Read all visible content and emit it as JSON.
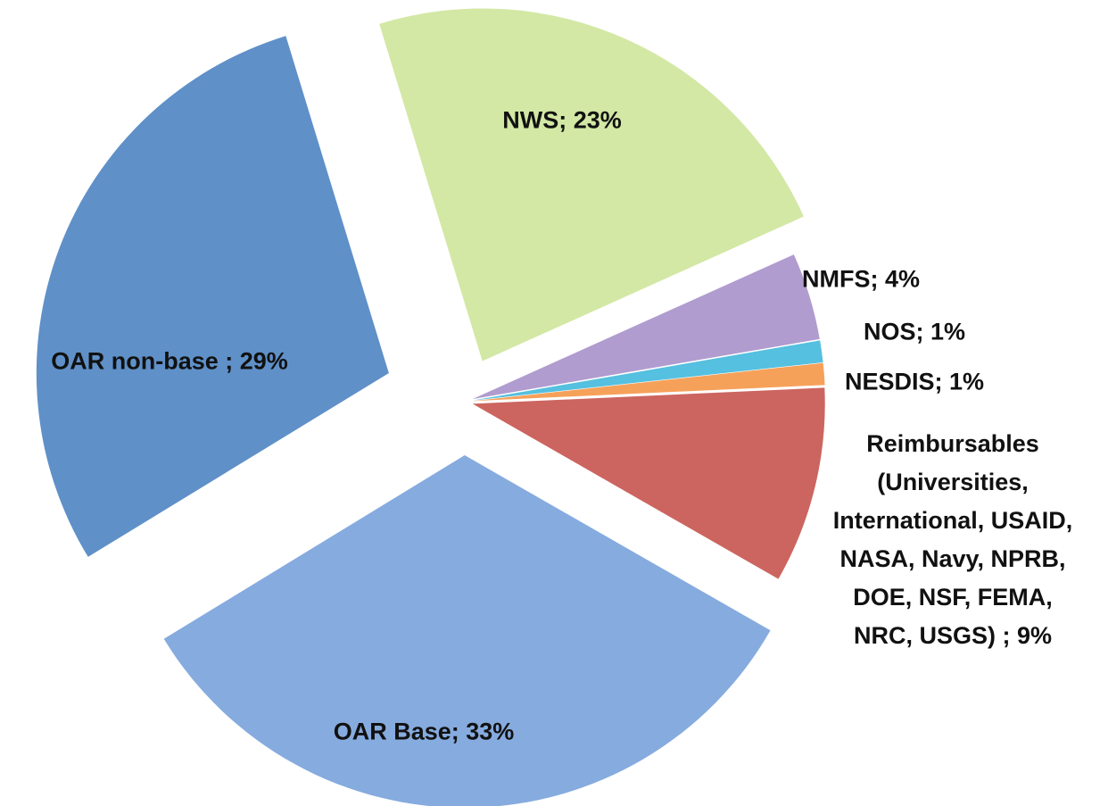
{
  "chart_data": {
    "type": "pie",
    "values": [
      23,
      4,
      1,
      1,
      9,
      33,
      29
    ],
    "value_labels": [
      "NWS; 23%",
      "NMFS; 4%",
      "NOS; 1%",
      "NESDIS; 1%",
      "Reimbursables\n(Universities,\nInternational, USAID,\nNASA, Navy, NPRB,\nDOE, NSF, FEMA,\nNRC, USGS) ; 9%",
      "OAR Base; 33%",
      "OAR non-base ; 29%"
    ],
    "colors": [
      "#d3e8a4",
      "#b09ccf",
      "#55c0df",
      "#f6a15a",
      "#cc655f",
      "#86abdf",
      "#5f90c8"
    ]
  }
}
